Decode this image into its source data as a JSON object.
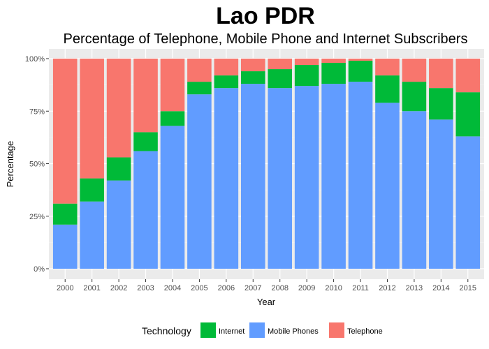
{
  "chart_data": {
    "type": "bar",
    "stacked": true,
    "title": "Lao PDR",
    "subtitle": "Percentage of Telephone, Mobile Phone and Internet Subscribers",
    "xlabel": "Year",
    "ylabel": "Percentage",
    "ylim": [
      0,
      100
    ],
    "y_ticks": [
      "0%",
      "25%",
      "50%",
      "75%",
      "100%"
    ],
    "y_tick_values": [
      0,
      25,
      50,
      75,
      100
    ],
    "categories": [
      "2000",
      "2001",
      "2002",
      "2003",
      "2004",
      "2005",
      "2006",
      "2007",
      "2008",
      "2009",
      "2010",
      "2011",
      "2012",
      "2013",
      "2014",
      "2015"
    ],
    "series": [
      {
        "name": "Mobile Phones",
        "color": "#619CFF",
        "values": [
          21,
          32,
          42,
          56,
          68,
          83,
          86,
          88,
          86,
          87,
          88,
          89,
          79,
          75,
          71,
          63
        ]
      },
      {
        "name": "Internet",
        "color": "#00BA38",
        "values": [
          10,
          11,
          11,
          9,
          7,
          6,
          6,
          6,
          9,
          10,
          10,
          10,
          13,
          14,
          15,
          21
        ]
      },
      {
        "name": "Telephone",
        "color": "#F8766D",
        "values": [
          69,
          57,
          47,
          35,
          25,
          11,
          8,
          6,
          5,
          3,
          2,
          1,
          8,
          11,
          14,
          16
        ]
      }
    ],
    "grid": true,
    "legend": {
      "title": "Technology",
      "position": "bottom",
      "entries": [
        {
          "label": "Internet",
          "color": "#00BA38"
        },
        {
          "label": "Mobile Phones",
          "color": "#619CFF"
        },
        {
          "label": "Telephone",
          "color": "#F8766D"
        }
      ]
    }
  }
}
